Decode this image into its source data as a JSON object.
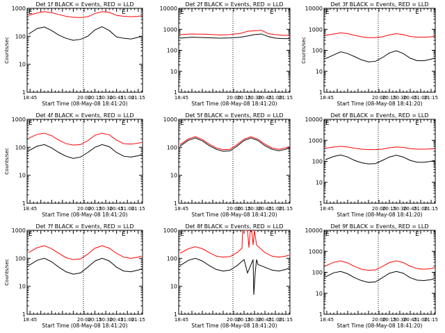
{
  "figure": {
    "background": "#ffffff",
    "axis_color": "#000000",
    "series_colors": {
      "events": "#000000",
      "lld": "#ff0000"
    }
  },
  "chart_data": [
    {
      "type": "line",
      "title": "Det 1f BLACK = Events, RED = LLD",
      "ylabel": "Counts/sec",
      "xlabel": "Start Time (08-May-08 18:41:20)",
      "ylim": [
        1,
        1000
      ],
      "yscale": "log",
      "yticks": [
        "1",
        "10",
        "100",
        "1000"
      ],
      "xlim": [
        "18:41",
        "21:21"
      ],
      "xticks": [
        "18:45",
        "20:00",
        "20:15",
        "20:30",
        "20:45",
        "21:00",
        "21:15"
      ],
      "vlines": [
        "19:59",
        "21:27"
      ],
      "marker_glyphs": [
        "E",
        "E"
      ],
      "series": [
        {
          "color": "#000000",
          "x": [
            "18:43",
            "18:55",
            "19:05",
            "19:15",
            "19:25",
            "19:35",
            "19:45",
            "19:55",
            "20:05",
            "20:15",
            "20:25",
            "20:35",
            "20:45",
            "20:55",
            "21:05",
            "21:15",
            "21:20"
          ],
          "values": [
            120,
            190,
            215,
            160,
            110,
            85,
            72,
            78,
            100,
            170,
            220,
            160,
            95,
            85,
            80,
            92,
            100
          ]
        },
        {
          "color": "#ff0000",
          "x": [
            "18:43",
            "18:55",
            "19:05",
            "19:15",
            "19:25",
            "19:35",
            "19:45",
            "19:55",
            "20:05",
            "20:15",
            "20:25",
            "20:35",
            "20:45",
            "20:55",
            "21:05",
            "21:15",
            "21:20"
          ],
          "values": [
            560,
            680,
            760,
            700,
            600,
            520,
            480,
            470,
            500,
            650,
            760,
            720,
            560,
            520,
            500,
            520,
            540
          ]
        }
      ]
    },
    {
      "type": "line",
      "title": "Det 2f BLACK = Events, RED = LLD",
      "ylabel": "",
      "xlabel": "Start Time (08-May-08 18:41:20)",
      "ylim": [
        1,
        10000
      ],
      "yscale": "log",
      "yticks": [
        "1",
        "10",
        "100",
        "1000",
        "10000"
      ],
      "xlim": [
        "18:41",
        "21:21"
      ],
      "xticks": [
        "18:45",
        "20:00",
        "20:15",
        "20:30",
        "20:45",
        "21:00",
        "21:15"
      ],
      "vlines": [
        "19:59",
        "21:27"
      ],
      "marker_glyphs": [
        "E",
        "E"
      ],
      "series": [
        {
          "color": "#000000",
          "x": [
            "18:43",
            "19:00",
            "19:20",
            "19:40",
            "19:55",
            "20:10",
            "20:20",
            "20:30",
            "20:40",
            "20:50",
            "21:00",
            "21:10",
            "21:20"
          ],
          "values": [
            380,
            420,
            400,
            380,
            390,
            420,
            480,
            560,
            600,
            450,
            380,
            360,
            360
          ]
        },
        {
          "color": "#ff0000",
          "x": [
            "18:43",
            "19:00",
            "19:20",
            "19:40",
            "19:55",
            "20:10",
            "20:20",
            "20:30",
            "20:40",
            "20:50",
            "21:00",
            "21:10",
            "21:20"
          ],
          "values": [
            560,
            600,
            580,
            540,
            560,
            640,
            800,
            850,
            900,
            620,
            560,
            520,
            520
          ]
        }
      ]
    },
    {
      "type": "line",
      "title": "Det 3f BLACK = Events, RED = LLD",
      "ylabel": "Counts/sec",
      "xlabel": "Start Time (08-May-08 18:41:20)",
      "ylim": [
        1,
        10000
      ],
      "yscale": "log",
      "yticks": [
        "1",
        "10",
        "100",
        "1000",
        "10000"
      ],
      "xlim": [
        "18:41",
        "21:21"
      ],
      "xticks": [
        "18:45",
        "20:00",
        "20:15",
        "20:30",
        "20:45",
        "21:00",
        "21:15"
      ],
      "vlines": [
        "19:59",
        "21:27"
      ],
      "marker_glyphs": [
        "E",
        "E"
      ],
      "series": [
        {
          "color": "#000000",
          "x": [
            "18:43",
            "18:55",
            "19:05",
            "19:15",
            "19:25",
            "19:35",
            "19:45",
            "19:55",
            "20:05",
            "20:15",
            "20:25",
            "20:35",
            "20:45",
            "20:55",
            "21:05",
            "21:15",
            "21:20"
          ],
          "values": [
            40,
            60,
            85,
            70,
            50,
            35,
            28,
            30,
            45,
            75,
            95,
            70,
            42,
            32,
            32,
            38,
            42
          ]
        },
        {
          "color": "#ff0000",
          "x": [
            "18:43",
            "18:55",
            "19:05",
            "19:15",
            "19:25",
            "19:35",
            "19:45",
            "19:55",
            "20:05",
            "20:15",
            "20:25",
            "20:35",
            "20:45",
            "20:55",
            "21:05",
            "21:15",
            "21:20"
          ],
          "values": [
            520,
            600,
            680,
            620,
            520,
            440,
            400,
            400,
            440,
            540,
            620,
            560,
            460,
            420,
            420,
            440,
            460
          ]
        }
      ]
    },
    {
      "type": "line",
      "title": "Det 4f BLACK = Events, RED = LLD",
      "ylabel": "Counts/sec",
      "xlabel": "Start Time (08-May-08 18:41:20)",
      "ylim": [
        1,
        1000
      ],
      "yscale": "log",
      "yticks": [
        "1",
        "10",
        "100",
        "1000"
      ],
      "xlim": [
        "18:41",
        "21:21"
      ],
      "xticks": [
        "18:45",
        "20:00",
        "20:15",
        "20:30",
        "20:45",
        "21:00",
        "21:15"
      ],
      "vlines": [
        "19:59",
        "21:27"
      ],
      "marker_glyphs": [
        "E",
        "E"
      ],
      "series": [
        {
          "color": "#000000",
          "x": [
            "18:43",
            "18:55",
            "19:05",
            "19:15",
            "19:25",
            "19:35",
            "19:45",
            "19:55",
            "20:05",
            "20:15",
            "20:25",
            "20:35",
            "20:45",
            "20:55",
            "21:05",
            "21:15",
            "21:20"
          ],
          "values": [
            75,
            110,
            125,
            95,
            65,
            48,
            40,
            45,
            65,
            100,
            125,
            105,
            65,
            48,
            45,
            50,
            55
          ]
        },
        {
          "color": "#ff0000",
          "x": [
            "18:43",
            "18:55",
            "19:05",
            "19:15",
            "19:25",
            "19:35",
            "19:45",
            "19:55",
            "20:05",
            "20:15",
            "20:25",
            "20:35",
            "20:45",
            "20:55",
            "21:05",
            "21:15",
            "21:20"
          ],
          "values": [
            210,
            290,
            320,
            260,
            180,
            135,
            120,
            125,
            170,
            270,
            320,
            280,
            180,
            135,
            130,
            140,
            150
          ]
        }
      ]
    },
    {
      "type": "line",
      "title": "Det 5f BLACK = Events, RED = LLD",
      "ylabel": "",
      "xlabel": "Start Time (08-May-08 18:41:20)",
      "ylim": [
        1,
        1000
      ],
      "yscale": "log",
      "yticks": [
        "1",
        "10",
        "100",
        "1000"
      ],
      "xlim": [
        "18:41",
        "21:21"
      ],
      "xticks": [
        "18:45",
        "20:00",
        "20:15",
        "20:30",
        "20:45",
        "21:00",
        "21:15"
      ],
      "vlines": [
        "19:59",
        "21:27"
      ],
      "marker_glyphs": [
        "E",
        "E"
      ],
      "series": [
        {
          "color": "#000000",
          "x": [
            "18:43",
            "18:55",
            "19:05",
            "19:15",
            "19:25",
            "19:35",
            "19:45",
            "19:55",
            "20:05",
            "20:15",
            "20:25",
            "20:35",
            "20:45",
            "20:55",
            "21:05",
            "21:15",
            "21:20"
          ],
          "values": [
            110,
            180,
            215,
            170,
            115,
            85,
            72,
            75,
            110,
            175,
            215,
            175,
            115,
            85,
            75,
            85,
            95
          ]
        },
        {
          "color": "#ff0000",
          "x": [
            "18:43",
            "18:55",
            "19:05",
            "19:15",
            "19:25",
            "19:35",
            "19:45",
            "19:55",
            "20:05",
            "20:15",
            "20:25",
            "20:35",
            "20:45",
            "20:55",
            "21:05",
            "21:15",
            "21:20"
          ],
          "values": [
            125,
            200,
            240,
            190,
            130,
            95,
            82,
            85,
            125,
            195,
            240,
            195,
            130,
            95,
            85,
            95,
            105
          ]
        }
      ]
    },
    {
      "type": "line",
      "title": "Det 6f BLACK = Events, RED = LLD",
      "ylabel": "",
      "xlabel": "Start Time (08-May-08 18:41:20)",
      "ylim": [
        1,
        10000
      ],
      "yscale": "log",
      "yticks": [
        "1",
        "10",
        "100",
        "1000",
        "10000"
      ],
      "xlim": [
        "18:41",
        "21:21"
      ],
      "xticks": [
        "18:45",
        "20:00",
        "20:15",
        "20:30",
        "20:45",
        "21:00",
        "21:15"
      ],
      "vlines": [
        "19:59",
        "21:27"
      ],
      "marker_glyphs": [
        "E",
        "E"
      ],
      "series": [
        {
          "color": "#000000",
          "x": [
            "18:43",
            "18:55",
            "19:05",
            "19:15",
            "19:25",
            "19:35",
            "19:45",
            "19:55",
            "20:05",
            "20:15",
            "20:25",
            "20:35",
            "20:45",
            "20:55",
            "21:05",
            "21:15",
            "21:20"
          ],
          "values": [
            120,
            170,
            200,
            160,
            110,
            85,
            75,
            78,
            110,
            160,
            195,
            160,
            110,
            90,
            90,
            100,
            110
          ]
        },
        {
          "color": "#ff0000",
          "x": [
            "18:43",
            "18:55",
            "19:05",
            "19:15",
            "19:25",
            "19:35",
            "19:45",
            "19:55",
            "20:05",
            "20:15",
            "20:25",
            "20:35",
            "20:45",
            "20:55",
            "21:05",
            "21:15",
            "21:20"
          ],
          "values": [
            420,
            480,
            520,
            480,
            420,
            380,
            360,
            360,
            380,
            440,
            480,
            460,
            400,
            380,
            380,
            390,
            400
          ]
        }
      ]
    },
    {
      "type": "line",
      "title": "Det 7f BLACK = Events, RED = LLD",
      "ylabel": "Counts/sec",
      "xlabel": "Start Time (08-May-08 18:41:20)",
      "ylim": [
        1,
        1000
      ],
      "yscale": "log",
      "yticks": [
        "1",
        "10",
        "100",
        "1000"
      ],
      "xlim": [
        "18:41",
        "21:21"
      ],
      "xticks": [
        "18:45",
        "20:00",
        "20:15",
        "20:30",
        "20:45",
        "21:00",
        "21:15"
      ],
      "vlines": [
        "19:59",
        "21:27"
      ],
      "marker_glyphs": [
        "E",
        "E"
      ],
      "series": [
        {
          "color": "#000000",
          "x": [
            "18:43",
            "18:55",
            "19:05",
            "19:15",
            "19:25",
            "19:35",
            "19:45",
            "19:55",
            "20:05",
            "20:15",
            "20:25",
            "20:35",
            "20:45",
            "20:55",
            "21:05",
            "21:15",
            "21:20"
          ],
          "values": [
            55,
            85,
            100,
            75,
            48,
            33,
            27,
            30,
            48,
            80,
            100,
            80,
            48,
            35,
            33,
            38,
            42
          ]
        },
        {
          "color": "#ff0000",
          "x": [
            "18:43",
            "18:55",
            "19:05",
            "19:15",
            "19:25",
            "19:35",
            "19:45",
            "19:55",
            "20:05",
            "20:15",
            "20:25",
            "20:35",
            "20:45",
            "20:55",
            "21:05",
            "21:15",
            "21:20"
          ],
          "values": [
            160,
            240,
            280,
            220,
            150,
            105,
            90,
            95,
            140,
            230,
            280,
            230,
            150,
            110,
            100,
            110,
            120
          ]
        }
      ]
    },
    {
      "type": "line",
      "title": "Det 8f BLACK = Events, RED = LLD",
      "ylabel": "",
      "xlabel": "Start Time (08-May-08 18:41:20)",
      "ylim": [
        1,
        1000
      ],
      "yscale": "log",
      "yticks": [
        "1",
        "10",
        "100",
        "1000"
      ],
      "xlim": [
        "18:41",
        "21:21"
      ],
      "xticks": [
        "18:45",
        "20:00",
        "20:15",
        "20:30",
        "20:45",
        "21:00",
        "21:15"
      ],
      "vlines": [
        "19:59",
        "21:27"
      ],
      "marker_glyphs": [
        "E",
        "E"
      ],
      "series": [
        {
          "color": "#000000",
          "x": [
            "18:43",
            "18:55",
            "19:05",
            "19:15",
            "19:25",
            "19:35",
            "19:45",
            "19:55",
            "20:05",
            "20:15",
            "20:20",
            "20:28",
            "20:29",
            "20:31",
            "20:33",
            "20:35",
            "20:45",
            "20:55",
            "21:05",
            "21:15",
            "21:20"
          ],
          "values": [
            55,
            85,
            100,
            80,
            55,
            40,
            35,
            38,
            55,
            90,
            30,
            90,
            5,
            30,
            90,
            60,
            48,
            38,
            35,
            40,
            45
          ]
        },
        {
          "color": "#ff0000",
          "x": [
            "18:43",
            "18:55",
            "19:05",
            "19:15",
            "19:25",
            "19:35",
            "19:45",
            "19:55",
            "20:05",
            "20:12",
            "20:13",
            "20:20",
            "20:22",
            "20:24",
            "20:26",
            "20:28",
            "20:30",
            "20:33",
            "20:45",
            "20:55",
            "21:05",
            "21:15",
            "21:20"
          ],
          "values": [
            150,
            220,
            260,
            220,
            160,
            120,
            110,
            115,
            160,
            230,
            1000,
            1000,
            240,
            1000,
            1000,
            300,
            1000,
            300,
            160,
            120,
            110,
            120,
            130
          ]
        }
      ]
    },
    {
      "type": "line",
      "title": "Det 9f BLACK = Events, RED = LLD",
      "ylabel": "",
      "xlabel": "Start Time (08-May-08 18:41:20)",
      "ylim": [
        1,
        10000
      ],
      "yscale": "log",
      "yticks": [
        "1",
        "10",
        "100",
        "1000",
        "10000"
      ],
      "xlim": [
        "18:41",
        "21:21"
      ],
      "xticks": [
        "18:45",
        "20:00",
        "20:15",
        "20:30",
        "20:45",
        "21:00",
        "21:15"
      ],
      "vlines": [
        "19:59",
        "21:27"
      ],
      "marker_glyphs": [
        "E",
        "E"
      ],
      "series": [
        {
          "color": "#000000",
          "x": [
            "18:43",
            "18:55",
            "19:05",
            "19:15",
            "19:25",
            "19:35",
            "19:45",
            "19:55",
            "20:05",
            "20:15",
            "20:25",
            "20:35",
            "20:45",
            "20:55",
            "21:05",
            "21:15",
            "21:20"
          ],
          "values": [
            60,
            95,
            110,
            85,
            55,
            40,
            33,
            35,
            55,
            90,
            110,
            90,
            55,
            42,
            40,
            45,
            50
          ]
        },
        {
          "color": "#ff0000",
          "x": [
            "18:43",
            "18:55",
            "19:05",
            "19:15",
            "19:25",
            "19:35",
            "19:45",
            "19:55",
            "20:05",
            "20:15",
            "20:25",
            "20:35",
            "20:45",
            "20:55",
            "21:05",
            "21:15",
            "21:20"
          ],
          "values": [
            200,
            300,
            350,
            280,
            190,
            140,
            125,
            130,
            190,
            290,
            350,
            290,
            195,
            150,
            140,
            150,
            165
          ]
        }
      ]
    }
  ]
}
